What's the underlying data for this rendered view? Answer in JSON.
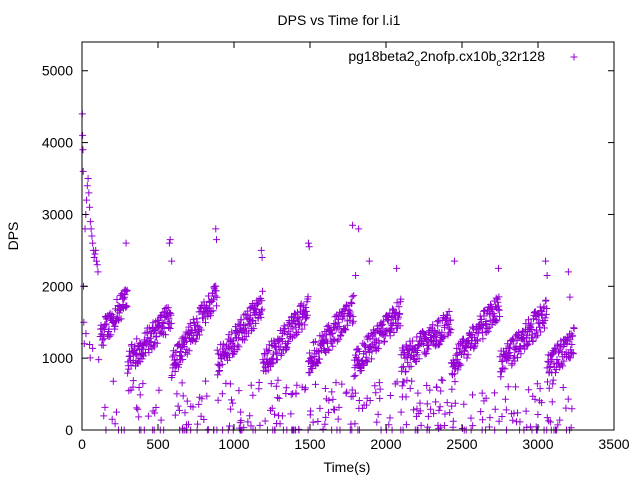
{
  "chart_data": {
    "type": "scatter",
    "title": "DPS vs Time for l.i1",
    "xlabel": "Time(s)",
    "ylabel": "DPS",
    "xlim": [
      0,
      3500
    ],
    "ylim": [
      0,
      5400
    ],
    "xticks": [
      0,
      500,
      1000,
      1500,
      2000,
      2500,
      3000,
      3500
    ],
    "yticks": [
      0,
      1000,
      2000,
      3000,
      4000,
      5000
    ],
    "xtick_labels": [
      "0",
      "500",
      "1000",
      "1500",
      "2000",
      "2500",
      "3000",
      "3500"
    ],
    "ytick_labels": [
      "0",
      "1000",
      "2000",
      "3000",
      "4000",
      "5000"
    ],
    "legend_position": "top-right",
    "marker": "+",
    "grid": false,
    "series": [
      {
        "name_parts": [
          "pg18beta2",
          "o",
          "2nofp.cx10b",
          "c",
          "32r128"
        ],
        "color": "#9400d3",
        "pattern": {
          "description": "sawtooth cycles of DPS values",
          "initial_burst": [
            [
              2,
              4400
            ],
            [
              4,
              4100
            ],
            [
              6,
              3900
            ],
            [
              8,
              3600
            ],
            [
              10,
              2000
            ],
            [
              12,
              1500
            ],
            [
              15,
              1200
            ],
            [
              20,
              2800
            ],
            [
              25,
              3000
            ],
            [
              30,
              3200
            ],
            [
              35,
              3400
            ],
            [
              40,
              3500
            ],
            [
              45,
              3300
            ],
            [
              50,
              3100
            ],
            [
              55,
              2900
            ],
            [
              60,
              2800
            ],
            [
              65,
              2700
            ],
            [
              70,
              2600
            ],
            [
              75,
              2500
            ],
            [
              80,
              2400
            ],
            [
              85,
              2450
            ],
            [
              90,
              2500
            ],
            [
              95,
              2350
            ],
            [
              100,
              2300
            ],
            [
              105,
              2200
            ]
          ],
          "cycles": [
            {
              "start": 120,
              "end": 300,
              "low": 1300,
              "high": 1850
            },
            {
              "start": 300,
              "end": 590,
              "low": 950,
              "high": 1600
            },
            {
              "start": 590,
              "end": 890,
              "low": 900,
              "high": 1900
            },
            {
              "start": 890,
              "end": 1190,
              "low": 950,
              "high": 1750
            },
            {
              "start": 1190,
              "end": 1490,
              "low": 900,
              "high": 1700
            },
            {
              "start": 1490,
              "end": 1790,
              "low": 950,
              "high": 1700
            },
            {
              "start": 1790,
              "end": 2100,
              "low": 900,
              "high": 1650
            },
            {
              "start": 2100,
              "end": 2430,
              "low": 950,
              "high": 1500
            },
            {
              "start": 2430,
              "end": 2750,
              "low": 900,
              "high": 1750
            },
            {
              "start": 2750,
              "end": 3060,
              "low": 900,
              "high": 1650
            },
            {
              "start": 3060,
              "end": 3240,
              "low": 850,
              "high": 1250
            }
          ],
          "spikes": [
            [
              290,
              2600
            ],
            [
              580,
              2650
            ],
            [
              575,
              2600
            ],
            [
              590,
              2350
            ],
            [
              880,
              2800
            ],
            [
              885,
              2650
            ],
            [
              1180,
              2500
            ],
            [
              1185,
              2400
            ],
            [
              1490,
              2600
            ],
            [
              1495,
              2550
            ],
            [
              1780,
              2850
            ],
            [
              1820,
              2800
            ],
            [
              1800,
              2150
            ],
            [
              1890,
              2350
            ],
            [
              2070,
              2250
            ],
            [
              2450,
              2350
            ],
            [
              2740,
              2250
            ],
            [
              3050,
              2350
            ],
            [
              3060,
              2150
            ],
            [
              3200,
              2200
            ],
            [
              3210,
              1850
            ]
          ],
          "low_scatter_range": [
            0,
            700
          ]
        }
      }
    ]
  }
}
